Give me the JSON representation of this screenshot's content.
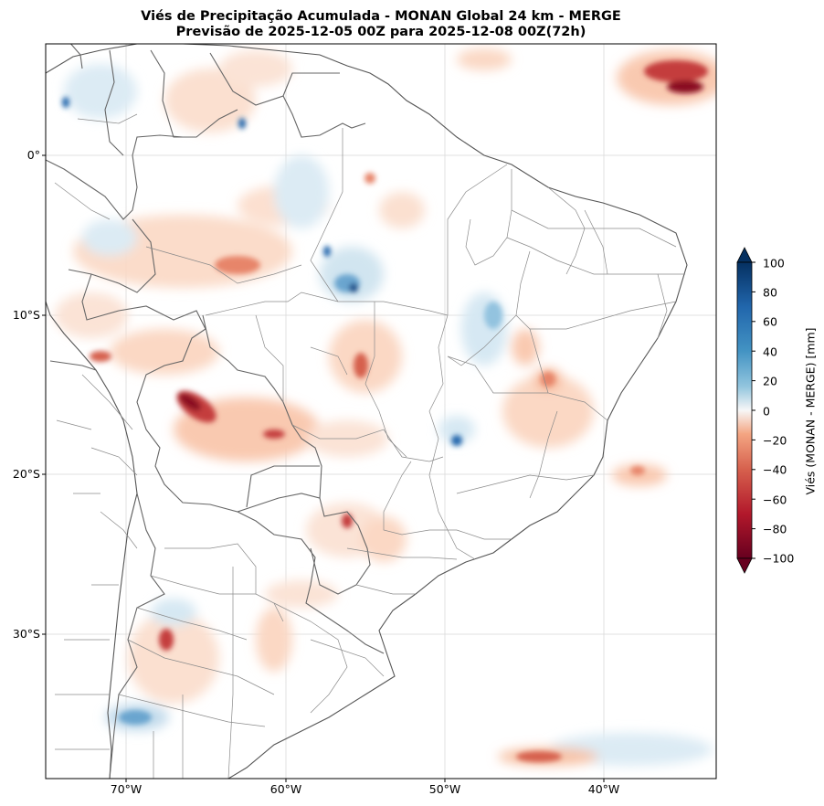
{
  "title": {
    "line1": "Viés de Precipitação Acumulada - MONAN Global 24 km - MERGE",
    "line2": "Previsão de 2025-12-05 00Z para 2025-12-08 00Z(72h)"
  },
  "map": {
    "region": "South America",
    "lat_labels": [
      "0°",
      "10°S",
      "20°S",
      "30°S"
    ],
    "lon_labels": [
      "70°W",
      "60°W",
      "50°W",
      "40°W"
    ]
  },
  "colorbar": {
    "label": "Viés (MONAN - MERGE) [mm]",
    "ticks": [
      "100",
      "80",
      "60",
      "40",
      "20",
      "0",
      "−20",
      "−40",
      "−60",
      "−80",
      "−100"
    ],
    "range": [
      -100,
      100
    ],
    "colors": {
      "max": "#053061",
      "high": "#2166ac",
      "mid_high": "#92c5de",
      "zero": "#f7f7f7",
      "mid_low": "#f4a582",
      "low": "#b2182b",
      "min": "#67001f"
    }
  }
}
